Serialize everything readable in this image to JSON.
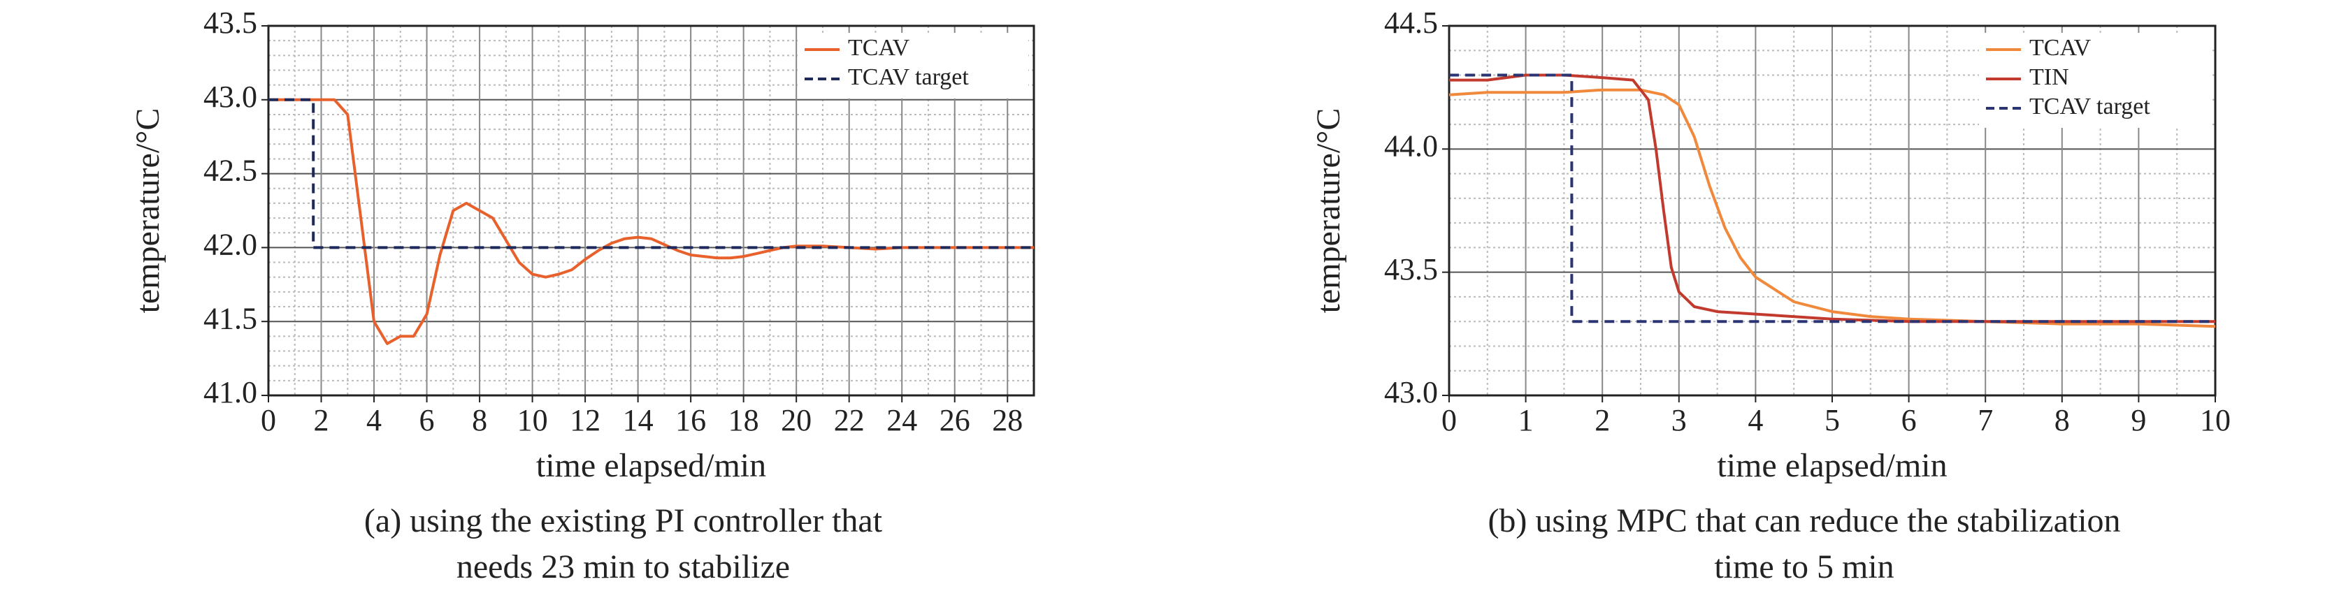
{
  "chart_data": [
    {
      "type": "line",
      "xlabel": "time elapsed/min",
      "ylabel": "temperature/°C",
      "caption": [
        "(a) using the existing PI controller that",
        "needs 23 min to stabilize"
      ],
      "xlim": [
        0,
        29
      ],
      "xticks": [
        0,
        2,
        4,
        6,
        8,
        10,
        12,
        14,
        16,
        18,
        20,
        22,
        24,
        26,
        28
      ],
      "ylim": [
        41,
        43.5
      ],
      "yticks": [
        {
          "value": 41,
          "label": "41.0"
        },
        41.5,
        {
          "value": 42,
          "label": "42.0"
        },
        42.5,
        {
          "value": 43,
          "label": "43.0"
        },
        43.5
      ],
      "grid": true,
      "legend": "top-right",
      "series": [
        {
          "name": "TCAV",
          "color": "#e8612c",
          "dash": "solid",
          "x": [
            0,
            0.5,
            1,
            1.5,
            2,
            2.5,
            3,
            3.5,
            4,
            4.5,
            5,
            5.5,
            6,
            6.5,
            7,
            7.5,
            8,
            8.5,
            9,
            9.5,
            10,
            10.5,
            11,
            11.5,
            12,
            12.5,
            13,
            13.5,
            14,
            14.5,
            15,
            15.5,
            16,
            16.5,
            17,
            17.5,
            18,
            18.5,
            19,
            19.5,
            20,
            21,
            22,
            23,
            24,
            25,
            26,
            27,
            28,
            29
          ],
          "values": [
            43.0,
            43.0,
            43.0,
            43.0,
            43.0,
            43.0,
            42.9,
            42.2,
            41.5,
            41.35,
            41.4,
            41.4,
            41.55,
            41.95,
            42.25,
            42.3,
            42.25,
            42.2,
            42.05,
            41.9,
            41.82,
            41.8,
            41.82,
            41.85,
            41.92,
            41.98,
            42.03,
            42.06,
            42.07,
            42.06,
            42.02,
            41.98,
            41.95,
            41.94,
            41.93,
            41.93,
            41.94,
            41.96,
            41.98,
            42.0,
            42.01,
            42.01,
            42.0,
            41.99,
            42.0,
            42.0,
            42.0,
            42.0,
            42.0,
            42.0
          ]
        },
        {
          "name": "TCAV target",
          "color": "#1f2a5c",
          "dash": "dashed",
          "x": [
            0,
            1.7,
            1.7,
            29
          ],
          "values": [
            43,
            43,
            42,
            42
          ]
        }
      ]
    },
    {
      "type": "line",
      "xlabel": "time elapsed/min",
      "ylabel": "temperature/°C",
      "caption": [
        "(b) using MPC that can reduce the stabilization",
        "time to 5 min"
      ],
      "xlim": [
        0,
        10
      ],
      "xticks": [
        0,
        1,
        2,
        3,
        4,
        5,
        6,
        7,
        8,
        9,
        10
      ],
      "ylim": [
        43,
        44.5
      ],
      "yticks": [
        {
          "value": 43,
          "label": "43.0"
        },
        43.5,
        {
          "value": 44,
          "label": "44.0"
        },
        44.5
      ],
      "grid": true,
      "legend": "top-right",
      "series": [
        {
          "name": "TCAV",
          "color": "#f0893c",
          "dash": "solid",
          "x": [
            0,
            0.5,
            1,
            1.5,
            2,
            2.5,
            2.8,
            3,
            3.2,
            3.4,
            3.6,
            3.8,
            4,
            4.5,
            5,
            5.5,
            6,
            7,
            8,
            9,
            10
          ],
          "values": [
            44.22,
            44.23,
            44.23,
            44.23,
            44.24,
            44.24,
            44.22,
            44.18,
            44.05,
            43.85,
            43.68,
            43.56,
            43.48,
            43.38,
            43.34,
            43.32,
            43.31,
            43.3,
            43.29,
            43.29,
            43.28
          ]
        },
        {
          "name": "TIN",
          "color": "#c23a2e",
          "dash": "solid",
          "x": [
            0,
            0.5,
            1,
            1.5,
            2,
            2.4,
            2.6,
            2.7,
            2.8,
            2.9,
            3,
            3.2,
            3.5,
            4,
            5,
            6,
            7,
            8,
            9,
            10
          ],
          "values": [
            44.28,
            44.28,
            44.3,
            44.3,
            44.29,
            44.28,
            44.2,
            44.0,
            43.75,
            43.52,
            43.42,
            43.36,
            43.34,
            43.33,
            43.31,
            43.3,
            43.3,
            43.3,
            43.3,
            43.3
          ]
        },
        {
          "name": "TCAV target",
          "color": "#2b3573",
          "dash": "dashed",
          "x": [
            0,
            1.6,
            1.6,
            10
          ],
          "values": [
            44.3,
            44.3,
            43.3,
            43.3
          ]
        }
      ]
    }
  ]
}
